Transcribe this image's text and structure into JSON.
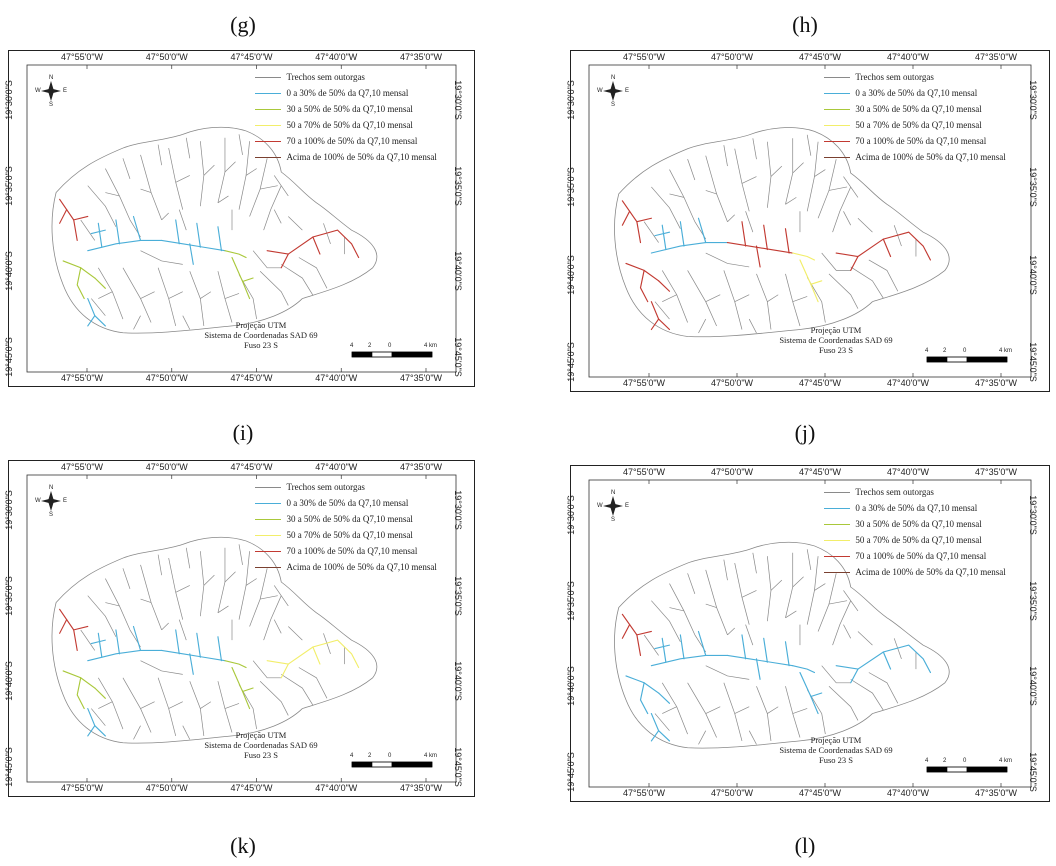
{
  "colors": {
    "none": "#8a8a8a",
    "c0_30": "#4aaed8",
    "c30_50": "#a9c83a",
    "c50_70": "#f2ee6a",
    "c70_100": "#c23a32",
    "above100": "#7a4030",
    "frame": "#222222"
  },
  "map_common": {
    "legend": [
      {
        "label": "Trechos sem outorgas",
        "color_key": "none"
      },
      {
        "label": "0 a 30% de 50% da Q7,10 mensal",
        "color_key": "c0_30"
      },
      {
        "label": "30 a 50% de 50% da Q7,10 mensal",
        "color_key": "c30_50"
      },
      {
        "label": "50 a 70% de 50% da Q7,10 mensal",
        "color_key": "c50_70"
      },
      {
        "label": "70 a 100% de 50% da Q7,10 mensal",
        "color_key": "c70_100"
      },
      {
        "label": "Acima de 100% de 50% da Q7,10 mensal",
        "color_key": "above100"
      }
    ],
    "lon_labels": [
      "47°55'0\"W",
      "47°50'0\"W",
      "47°45'0\"W",
      "47°40'0\"W",
      "47°35'0\"W"
    ],
    "lat_labels": [
      "19°30'0\"S",
      "19°35'0\"S",
      "19°40'0\"S",
      "19°45'0\"S"
    ],
    "projection": [
      "Projeção UTM",
      "Sistema de Coordenadas SAD 69",
      "Fuso 23 S"
    ],
    "scale_labels": [
      "4",
      "2",
      "0",
      "4 km"
    ],
    "north_labels": {
      "n": "N",
      "s": "S",
      "e": "E",
      "w": "W"
    }
  },
  "panels": [
    {
      "label": "(g)",
      "classes": {
        "west_upper": "c70_100",
        "west_lower": "c30_50",
        "southwest": "c0_30",
        "main": "c0_30",
        "mid": "c0_30",
        "south_trib": "c30_50",
        "east": "c70_100"
      }
    },
    {
      "label": "(h)",
      "classes": {
        "west_upper": "c70_100",
        "west_lower": "c70_100",
        "southwest": "c70_100",
        "main": "c0_30",
        "mid": "c70_100",
        "south_trib": "c50_70",
        "east": "c70_100"
      }
    },
    {
      "label": "(i)",
      "classes": {
        "west_upper": "c70_100",
        "west_lower": "c30_50",
        "southwest": "c0_30",
        "main": "c0_30",
        "mid": "c0_30",
        "south_trib": "c30_50",
        "east": "c50_70"
      }
    },
    {
      "label": "(j)",
      "classes": {
        "west_upper": "c70_100",
        "west_lower": "c0_30",
        "southwest": "c0_30",
        "main": "c0_30",
        "mid": "c0_30",
        "south_trib": "c0_30",
        "east": "c0_30"
      }
    }
  ],
  "bottom_labels": [
    "(k)",
    "(l)"
  ]
}
